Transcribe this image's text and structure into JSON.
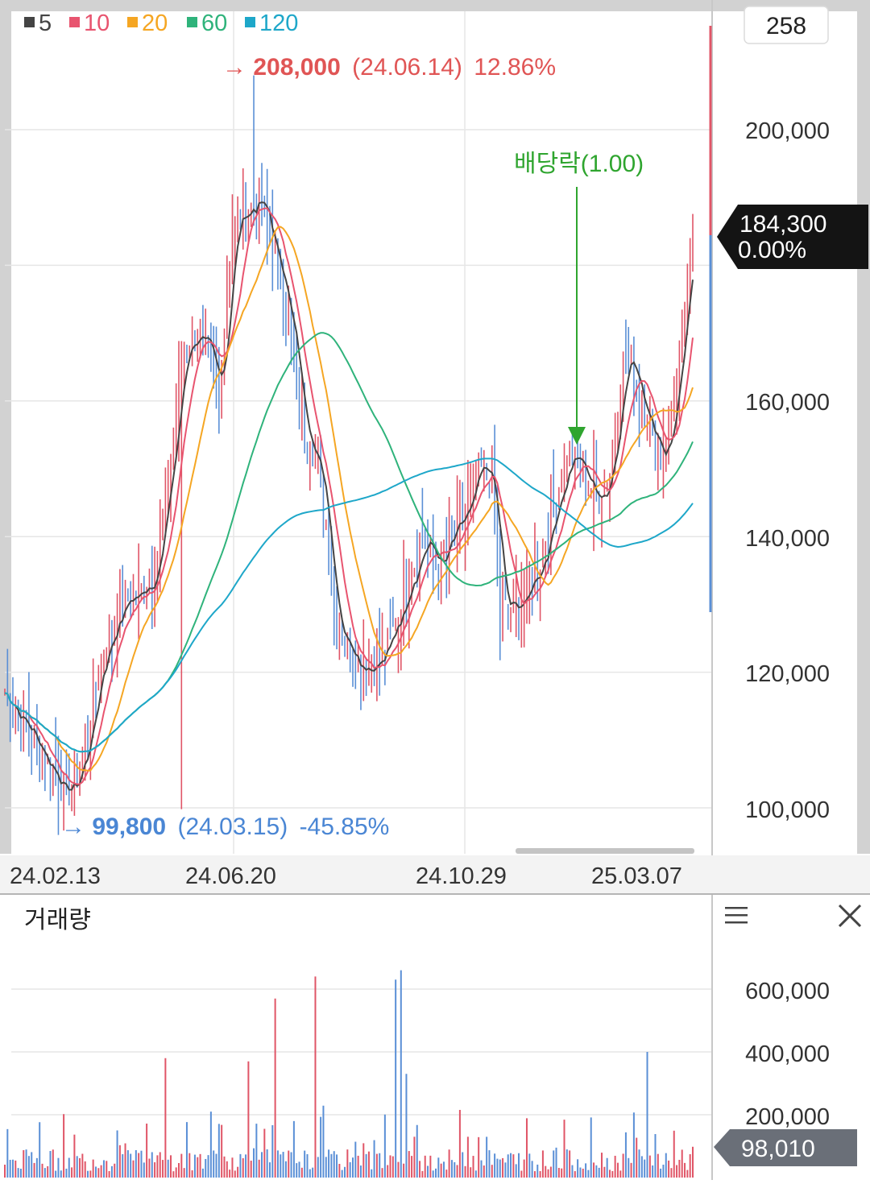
{
  "legend": [
    {
      "label": "5",
      "color": "#444444"
    },
    {
      "label": "10",
      "color": "#e8546f"
    },
    {
      "label": "20",
      "color": "#f5a623"
    },
    {
      "label": "60",
      "color": "#2fb37b"
    },
    {
      "label": "120",
      "color": "#1ea7c9"
    }
  ],
  "top_count": "258",
  "price_axis": {
    "labels": [
      "200,000",
      "160,000",
      "140,000",
      "120,000",
      "100,000"
    ],
    "ticks": [
      200000,
      180000,
      160000,
      140000,
      120000,
      100000
    ],
    "range": [
      94000,
      212000
    ]
  },
  "date_axis": {
    "labels": [
      "24.02.13",
      "24.06.20",
      "24.10.29",
      "25.03.07"
    ]
  },
  "current_price": {
    "price": "184,300",
    "change": "0.00%"
  },
  "high_annotation": {
    "arrow": "→",
    "value": "208,000",
    "date": "(24.06.14)",
    "pct": "12.86%",
    "color": "#e05555"
  },
  "low_annotation": {
    "arrow": "→",
    "value": "99,800",
    "date": "(24.03.15)",
    "pct": "-45.85%",
    "color": "#4a86d4"
  },
  "dividend_annotation": {
    "text": "배당락(1.00)",
    "color": "#2fa52f"
  },
  "volume_panel": {
    "title": "거래량",
    "labels": [
      "600,000",
      "400,000",
      "200,000"
    ],
    "ticks": [
      600000,
      400000,
      200000
    ],
    "range": [
      0,
      700000
    ],
    "current": "98,010"
  },
  "colors": {
    "up": "#e05567",
    "down": "#5a8fd6",
    "grid": "#e6e6e6",
    "divider": "#c8c8c8",
    "tag_dark": "#1a1a1a",
    "tag_gray": "#6a6f78"
  },
  "chart_data": {
    "type": "candlestick",
    "x_range": [
      "24.02.13",
      "25.03.07"
    ],
    "y_range": [
      94000,
      212000
    ],
    "high": {
      "value": 208000,
      "date": "24.06.14"
    },
    "low": {
      "value": 99800,
      "date": "24.03.15"
    },
    "close_path": [
      {
        "t": 0,
        "v": 117000
      },
      {
        "t": 0.03,
        "v": 112000
      },
      {
        "t": 0.06,
        "v": 107000
      },
      {
        "t": 0.09,
        "v": 102000
      },
      {
        "t": 0.1,
        "v": 103000
      },
      {
        "t": 0.12,
        "v": 110000
      },
      {
        "t": 0.14,
        "v": 122000
      },
      {
        "t": 0.17,
        "v": 130000
      },
      {
        "t": 0.2,
        "v": 132000
      },
      {
        "t": 0.22,
        "v": 136000
      },
      {
        "t": 0.24,
        "v": 150000
      },
      {
        "t": 0.26,
        "v": 168000
      },
      {
        "t": 0.28,
        "v": 170000
      },
      {
        "t": 0.3,
        "v": 165000
      },
      {
        "t": 0.31,
        "v": 160000
      },
      {
        "t": 0.33,
        "v": 185000
      },
      {
        "t": 0.35,
        "v": 188000
      },
      {
        "t": 0.37,
        "v": 190000
      },
      {
        "t": 0.39,
        "v": 182000
      },
      {
        "t": 0.41,
        "v": 175000
      },
      {
        "t": 0.43,
        "v": 158000
      },
      {
        "t": 0.45,
        "v": 153000
      },
      {
        "t": 0.47,
        "v": 140000
      },
      {
        "t": 0.48,
        "v": 128000
      },
      {
        "t": 0.5,
        "v": 124000
      },
      {
        "t": 0.52,
        "v": 121000
      },
      {
        "t": 0.55,
        "v": 122000
      },
      {
        "t": 0.57,
        "v": 128000
      },
      {
        "t": 0.59,
        "v": 135000
      },
      {
        "t": 0.61,
        "v": 140000
      },
      {
        "t": 0.63,
        "v": 135000
      },
      {
        "t": 0.65,
        "v": 140000
      },
      {
        "t": 0.67,
        "v": 143000
      },
      {
        "t": 0.69,
        "v": 150000
      },
      {
        "t": 0.71,
        "v": 148000
      },
      {
        "t": 0.72,
        "v": 130000
      },
      {
        "t": 0.74,
        "v": 129000
      },
      {
        "t": 0.76,
        "v": 132000
      },
      {
        "t": 0.78,
        "v": 137000
      },
      {
        "t": 0.8,
        "v": 145000
      },
      {
        "t": 0.82,
        "v": 152000
      },
      {
        "t": 0.84,
        "v": 150000
      },
      {
        "t": 0.86,
        "v": 145000
      },
      {
        "t": 0.88,
        "v": 150000
      },
      {
        "t": 0.9,
        "v": 167000
      },
      {
        "t": 0.92,
        "v": 163000
      },
      {
        "t": 0.94,
        "v": 155000
      },
      {
        "t": 0.96,
        "v": 152000
      },
      {
        "t": 0.98,
        "v": 165000
      },
      {
        "t": 1.0,
        "v": 184300
      }
    ]
  }
}
